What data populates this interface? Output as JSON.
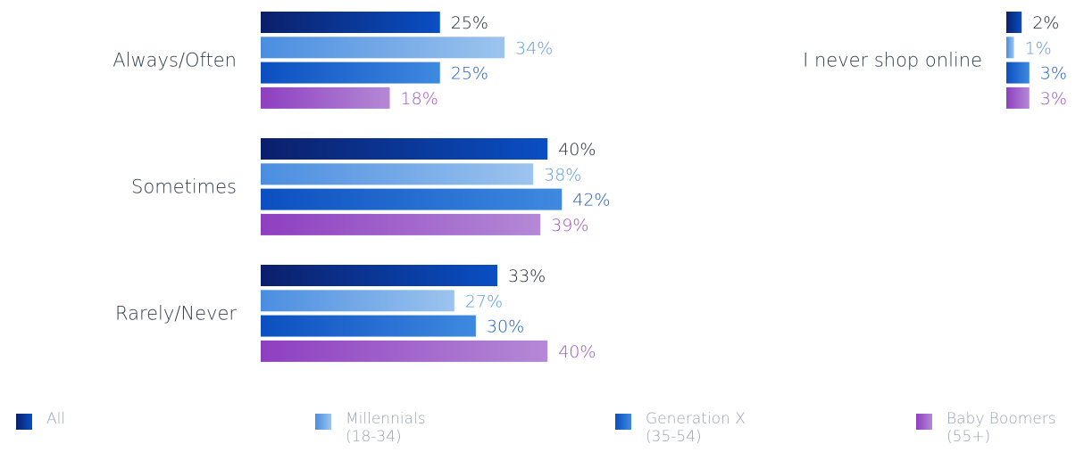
{
  "chart_data": {
    "type": "bar",
    "orientation": "horizontal",
    "groups": [
      {
        "categories": [
          "Always/Often",
          "Sometimes",
          "Rarely/Never"
        ],
        "series": [
          {
            "key": "all",
            "values": [
              25,
              40,
              33
            ]
          },
          {
            "key": "millennials",
            "values": [
              34,
              38,
              27
            ]
          },
          {
            "key": "genx",
            "values": [
              25,
              42,
              30
            ]
          },
          {
            "key": "boomers",
            "values": [
              18,
              39,
              40
            ]
          }
        ]
      },
      {
        "categories": [
          "I never shop online"
        ],
        "series": [
          {
            "key": "all",
            "values": [
              2
            ]
          },
          {
            "key": "millennials",
            "values": [
              1
            ]
          },
          {
            "key": "genx",
            "values": [
              3
            ]
          },
          {
            "key": "boomers",
            "values": [
              3
            ]
          }
        ]
      }
    ],
    "value_suffix": "%",
    "grid": false,
    "legend_position": "bottom"
  },
  "legend": [
    {
      "key": "all",
      "label": "All",
      "sublabel": ""
    },
    {
      "key": "millennials",
      "label": "Millennials",
      "sublabel": "(18-34)"
    },
    {
      "key": "genx",
      "label": "Generation X",
      "sublabel": "(35-54)"
    },
    {
      "key": "boomers",
      "label": "Baby Boomers",
      "sublabel": "(55+)"
    }
  ],
  "colors": {
    "all": {
      "from": "#0b1f6b",
      "to": "#0a4fc4",
      "label": "#222a36"
    },
    "millennials": {
      "from": "#4a8de0",
      "to": "#9cc4ee",
      "label": "#5b9be2"
    },
    "genx": {
      "from": "#0b4fc0",
      "to": "#3f8ae0",
      "label": "#1e5cc7"
    },
    "boomers": {
      "from": "#8e3fc0",
      "to": "#b489d6",
      "label": "#a054c9"
    }
  }
}
